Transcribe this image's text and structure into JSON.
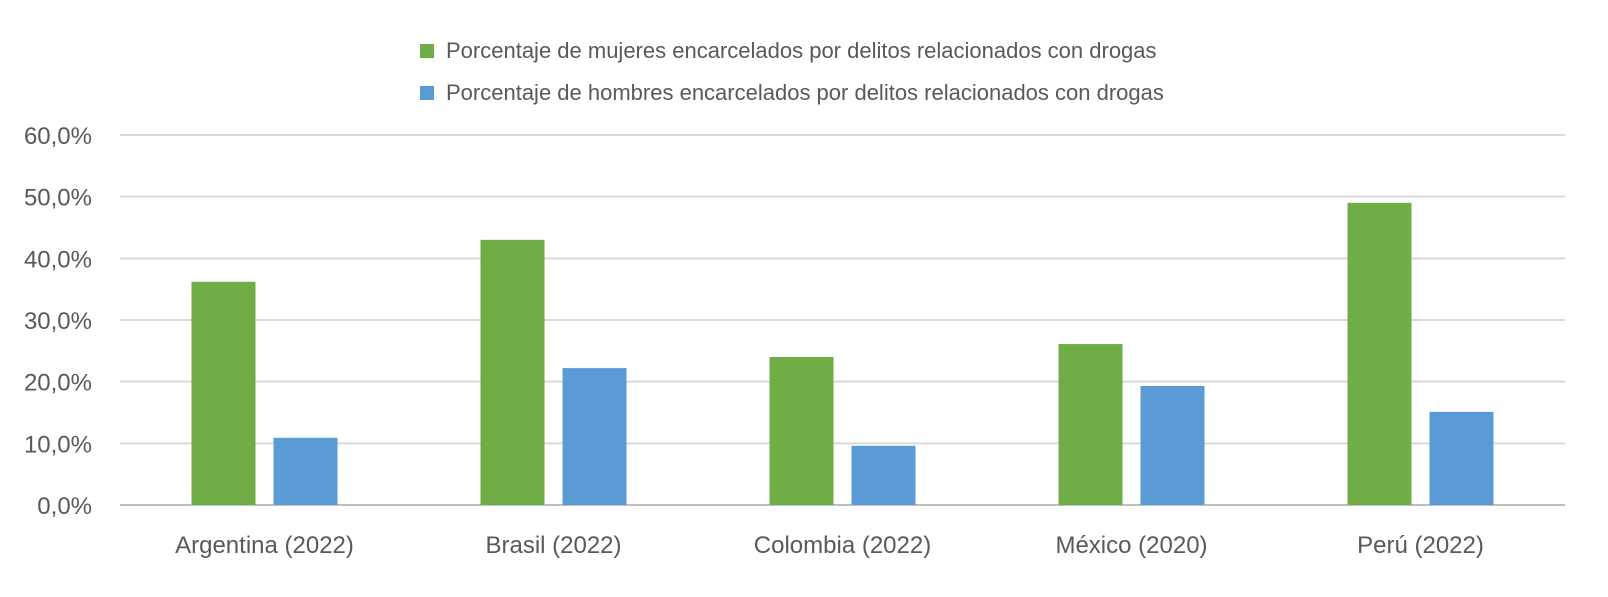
{
  "chart_data": {
    "type": "bar",
    "categories": [
      "Argentina (2022)",
      "Brasil (2022)",
      "Colombia (2022)",
      "México (2020)",
      "Perú (2022)"
    ],
    "series": [
      {
        "name": "Porcentaje de mujeres encarcelados por delitos relacionados con drogas",
        "color": "#70AD47",
        "values": [
          36.2,
          43.0,
          24.0,
          26.1,
          49.0
        ]
      },
      {
        "name": "Porcentaje de hombres encarcelados por delitos relacionados con drogas",
        "color": "#5B9BD5",
        "values": [
          10.9,
          22.2,
          9.6,
          19.3,
          15.1
        ]
      }
    ],
    "y_ticks": [
      "0,0%",
      "10,0%",
      "20,0%",
      "30,0%",
      "40,0%",
      "50,0%",
      "60,0%"
    ],
    "ylim": [
      0,
      60
    ],
    "grid": true,
    "legend": "top"
  }
}
